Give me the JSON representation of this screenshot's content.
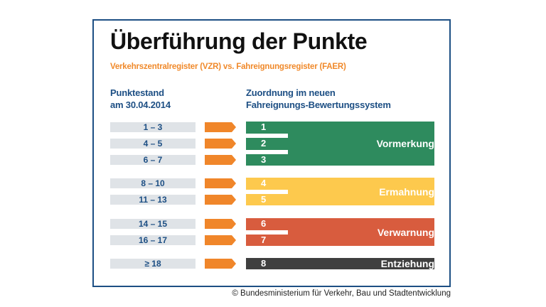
{
  "title": "Überführung der Punkte",
  "subtitle": "Verkehrszentralregister (VZR) vs. Fahreignungsregister (FAER)",
  "left_header": [
    "Punktestand",
    "am 30.04.2014"
  ],
  "right_header": [
    "Zuordnung im neuen",
    "Fahreignungs-Bewertungssystem"
  ],
  "rows": [
    {
      "range": "1 – 3",
      "points": "1"
    },
    {
      "range": "4 – 5",
      "points": "2"
    },
    {
      "range": "6 – 7",
      "points": "3"
    },
    {
      "range": "8 – 10",
      "points": "4"
    },
    {
      "range": "11 – 13",
      "points": "5"
    },
    {
      "range": "14 – 15",
      "points": "6"
    },
    {
      "range": "16 – 17",
      "points": "7"
    },
    {
      "range": "≥ 18",
      "points": "8"
    }
  ],
  "categories": [
    {
      "label": "Vormerkung",
      "color": "#2e8b5e"
    },
    {
      "label": "Ermahnung",
      "color": "#fdc94d"
    },
    {
      "label": "Verwarnung",
      "color": "#d85c3e"
    },
    {
      "label": "Entziehung",
      "color": "#3f3f3f"
    }
  ],
  "arrow_color": "#f0862a",
  "frame_color": "#1d4f84",
  "copyright": "© Bundesministerium für Verkehr, Bau und Stadtentwicklung"
}
